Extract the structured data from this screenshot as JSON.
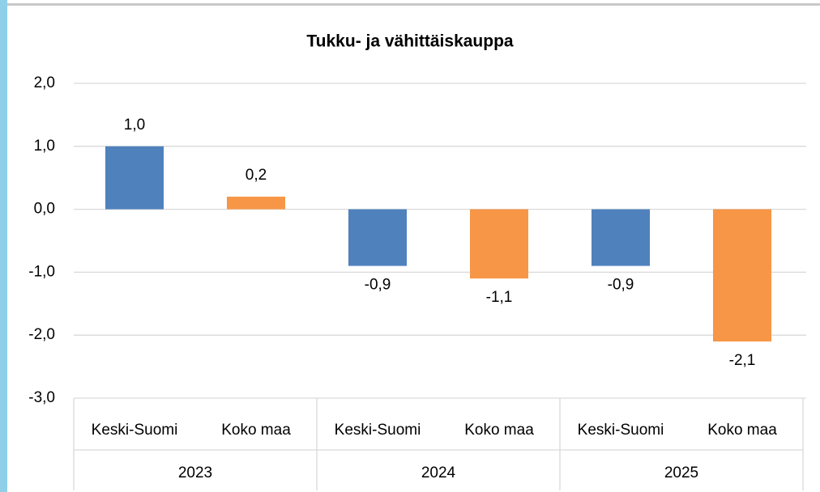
{
  "chart_data": {
    "type": "bar",
    "title": "Tukku- ja vähittäiskauppa",
    "categories": [
      "Keski-Suomi",
      "Koko maa",
      "Keski-Suomi",
      "Koko maa",
      "Keski-Suomi",
      "Koko maa"
    ],
    "groups": [
      "2023",
      "2024",
      "2025"
    ],
    "values": [
      1.0,
      0.2,
      -0.9,
      -1.1,
      -0.9,
      -2.1
    ],
    "value_labels": [
      "1,0",
      "0,2",
      "-0,9",
      "-1,1",
      "-0,9",
      "-2,1"
    ],
    "colors": [
      "#4f81bd",
      "#f79646",
      "#4f81bd",
      "#f79646",
      "#4f81bd",
      "#f79646"
    ],
    "ylim": [
      -3,
      2
    ],
    "yticks": [
      {
        "value": -3,
        "label": "-3,0"
      },
      {
        "value": -2,
        "label": "-2,0"
      },
      {
        "value": -1,
        "label": "-1,0"
      },
      {
        "value": 0,
        "label": "0,0"
      },
      {
        "value": 1,
        "label": "1,0"
      },
      {
        "value": 2,
        "label": "2,0"
      }
    ],
    "grid": true
  }
}
